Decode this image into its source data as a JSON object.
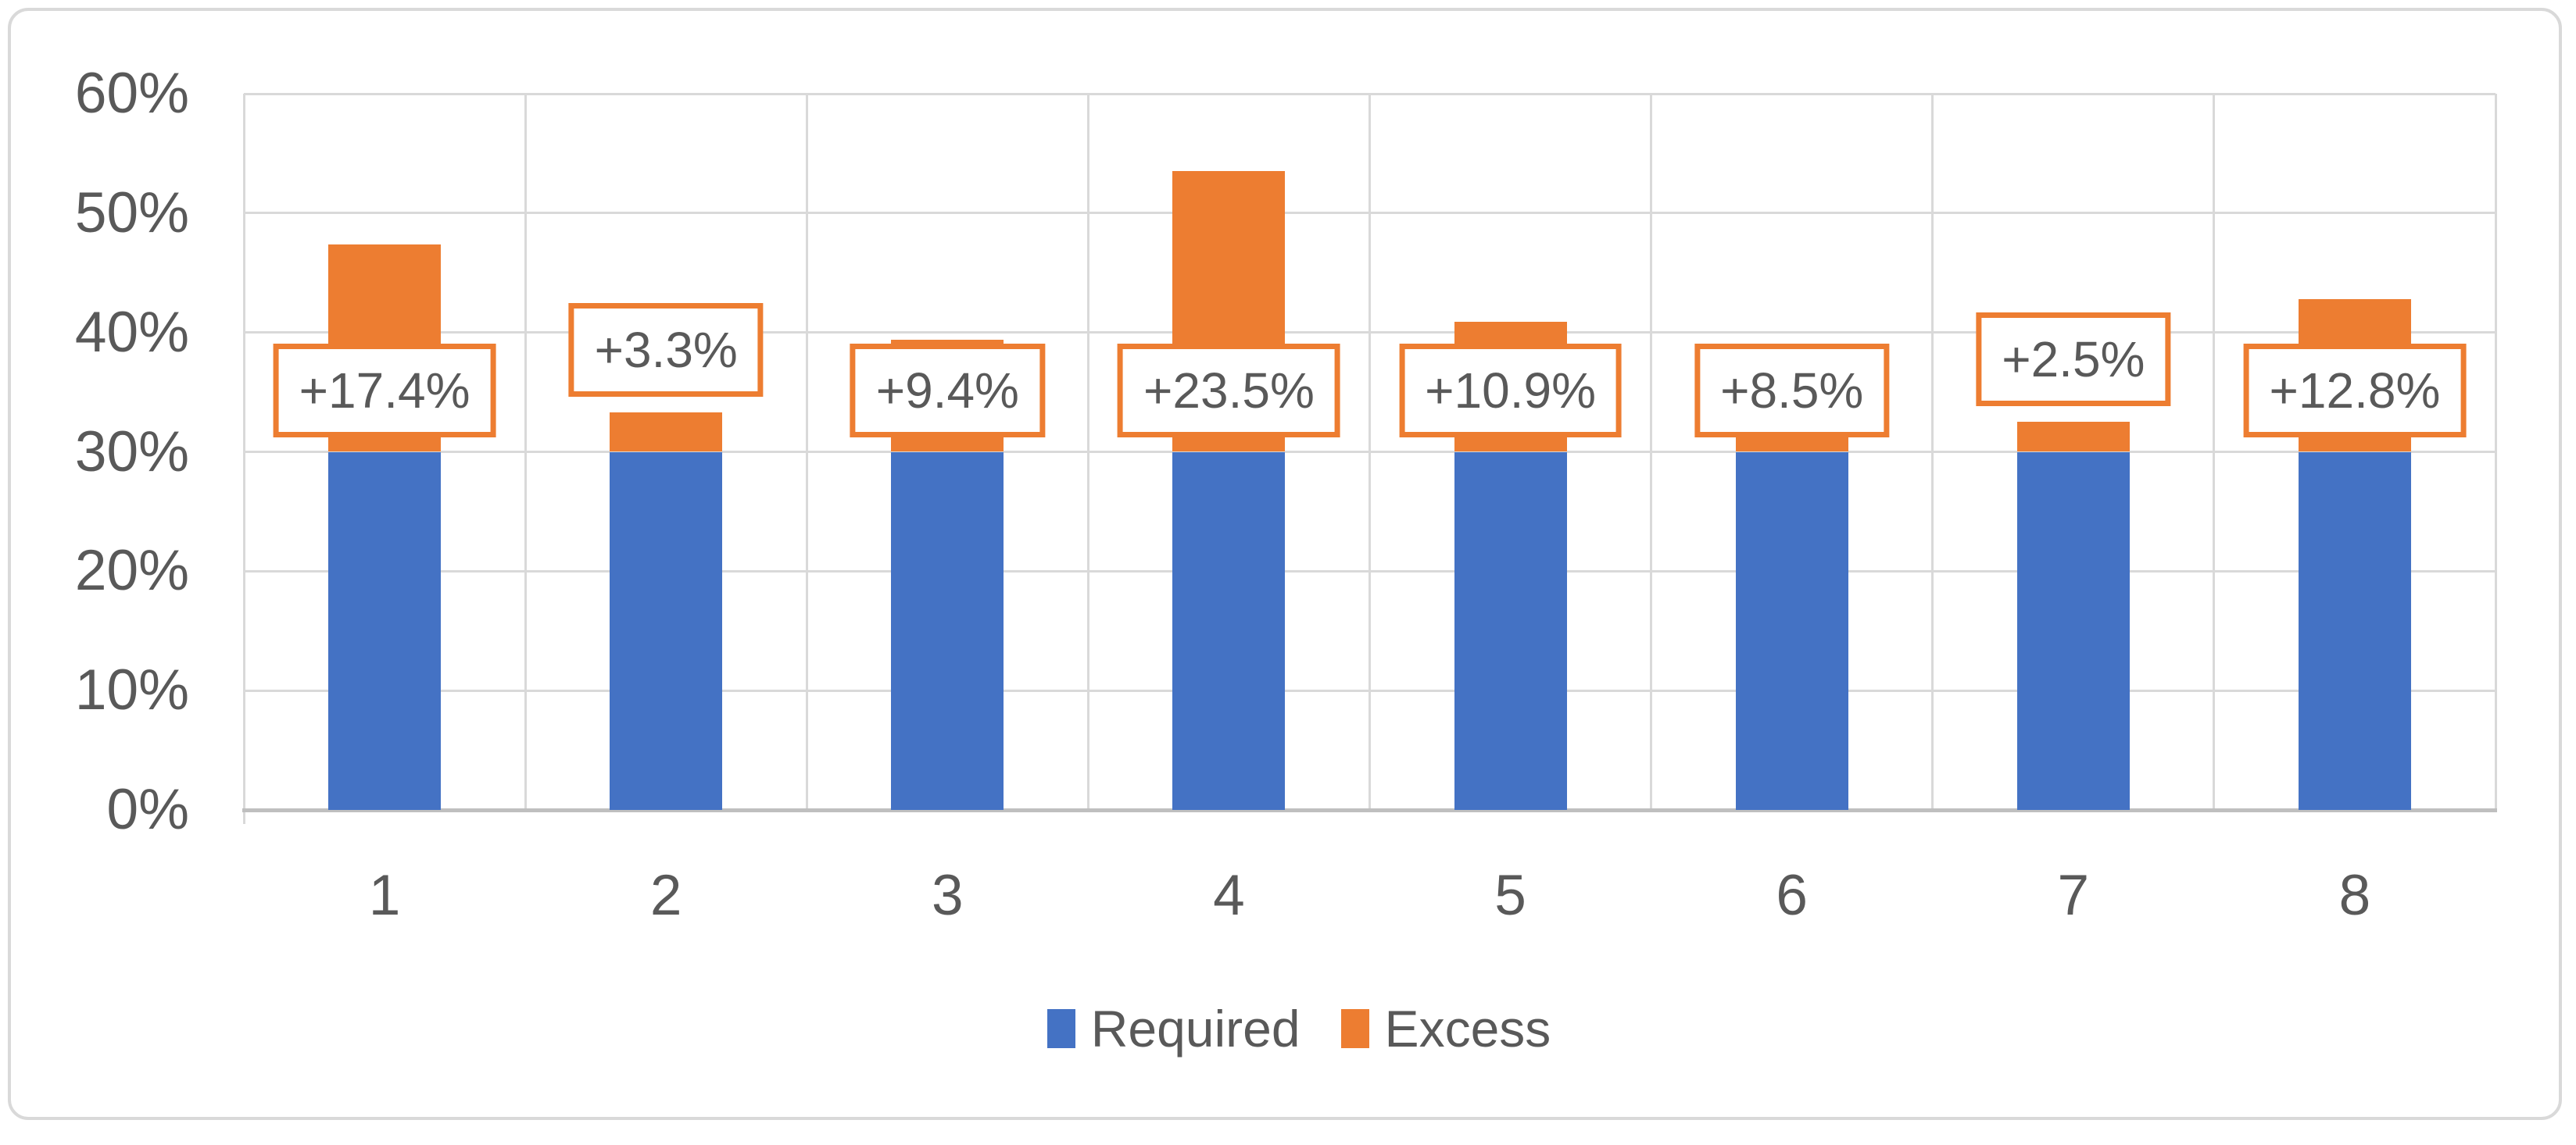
{
  "chart_data": {
    "type": "bar",
    "stacked": true,
    "categories": [
      "1",
      "2",
      "3",
      "4",
      "5",
      "6",
      "7",
      "8"
    ],
    "series": [
      {
        "name": "Required",
        "color": "#4472C4",
        "values": [
          30,
          30,
          30,
          30,
          30,
          30,
          30,
          30
        ]
      },
      {
        "name": "Excess",
        "color": "#ED7D31",
        "values": [
          17.4,
          3.3,
          9.4,
          23.5,
          10.9,
          8.5,
          2.5,
          12.8
        ]
      }
    ],
    "totals": [
      47.4,
      33.3,
      39.4,
      53.5,
      40.9,
      38.5,
      32.5,
      42.8
    ],
    "data_labels": [
      "+17.4%",
      "+3.3%",
      "+9.4%",
      "+23.5%",
      "+10.9%",
      "+8.5%",
      "+2.5%",
      "+12.8%"
    ],
    "y_axis": {
      "tick_labels": [
        "0%",
        "10%",
        "20%",
        "30%",
        "40%",
        "50%",
        "60%"
      ],
      "min": 0,
      "max": 60,
      "grid": true
    },
    "legend": {
      "position": "bottom",
      "items": [
        {
          "label": "Required",
          "color": "#4472C4"
        },
        {
          "label": "Excess",
          "color": "#ED7D31"
        }
      ]
    }
  },
  "colors": {
    "required_blue": "#4472C4",
    "excess_orange": "#ED7D31",
    "gridline": "#D9D9D9",
    "axis_line": "#BFBFBF",
    "text_gray": "#595959",
    "frame_border": "#D9D9D9",
    "label_box_bg": "#FFFFFF"
  }
}
